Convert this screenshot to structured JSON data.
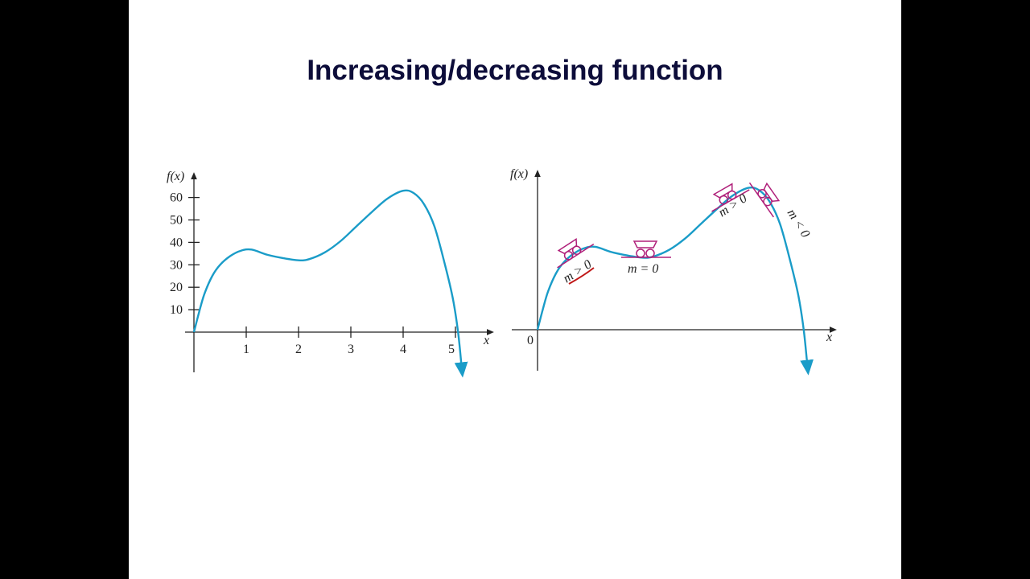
{
  "slide": {
    "title": "Increasing/decreasing function"
  },
  "colors": {
    "curve": "#1a9cc8",
    "cart": "#b0207a",
    "annotation": "#c01818"
  },
  "chart_data": [
    {
      "type": "line",
      "title": "",
      "xlabel": "x",
      "ylabel": "f(x)",
      "xticks": [
        "1",
        "2",
        "3",
        "4",
        "5"
      ],
      "yticks": [
        "10",
        "20",
        "30",
        "40",
        "50",
        "60"
      ],
      "xlim": [
        0,
        5.4
      ],
      "ylim": [
        -17,
        66
      ],
      "series": [
        {
          "name": "f(x)",
          "x": [
            0,
            0.1,
            0.2,
            0.35,
            0.5,
            0.7,
            0.9,
            1.1,
            1.4,
            1.7,
            2.0,
            2.2,
            2.5,
            2.8,
            3.1,
            3.4,
            3.7,
            4.0,
            4.2,
            4.4,
            4.6,
            4.8,
            4.95,
            5.05,
            5.12
          ],
          "y": [
            0,
            9,
            17,
            25,
            30,
            34,
            36.3,
            36.8,
            34.5,
            33,
            32,
            32.5,
            35.5,
            40.5,
            47,
            53.5,
            59.5,
            63,
            62,
            57,
            47,
            30,
            15,
            0,
            -16
          ]
        }
      ]
    },
    {
      "type": "line",
      "title": "",
      "xlabel": "x",
      "ylabel": "f(x)",
      "origin_label": "0",
      "annotations": [
        "m > 0",
        "m = 0",
        "m > 0",
        "m < 0"
      ]
    }
  ]
}
